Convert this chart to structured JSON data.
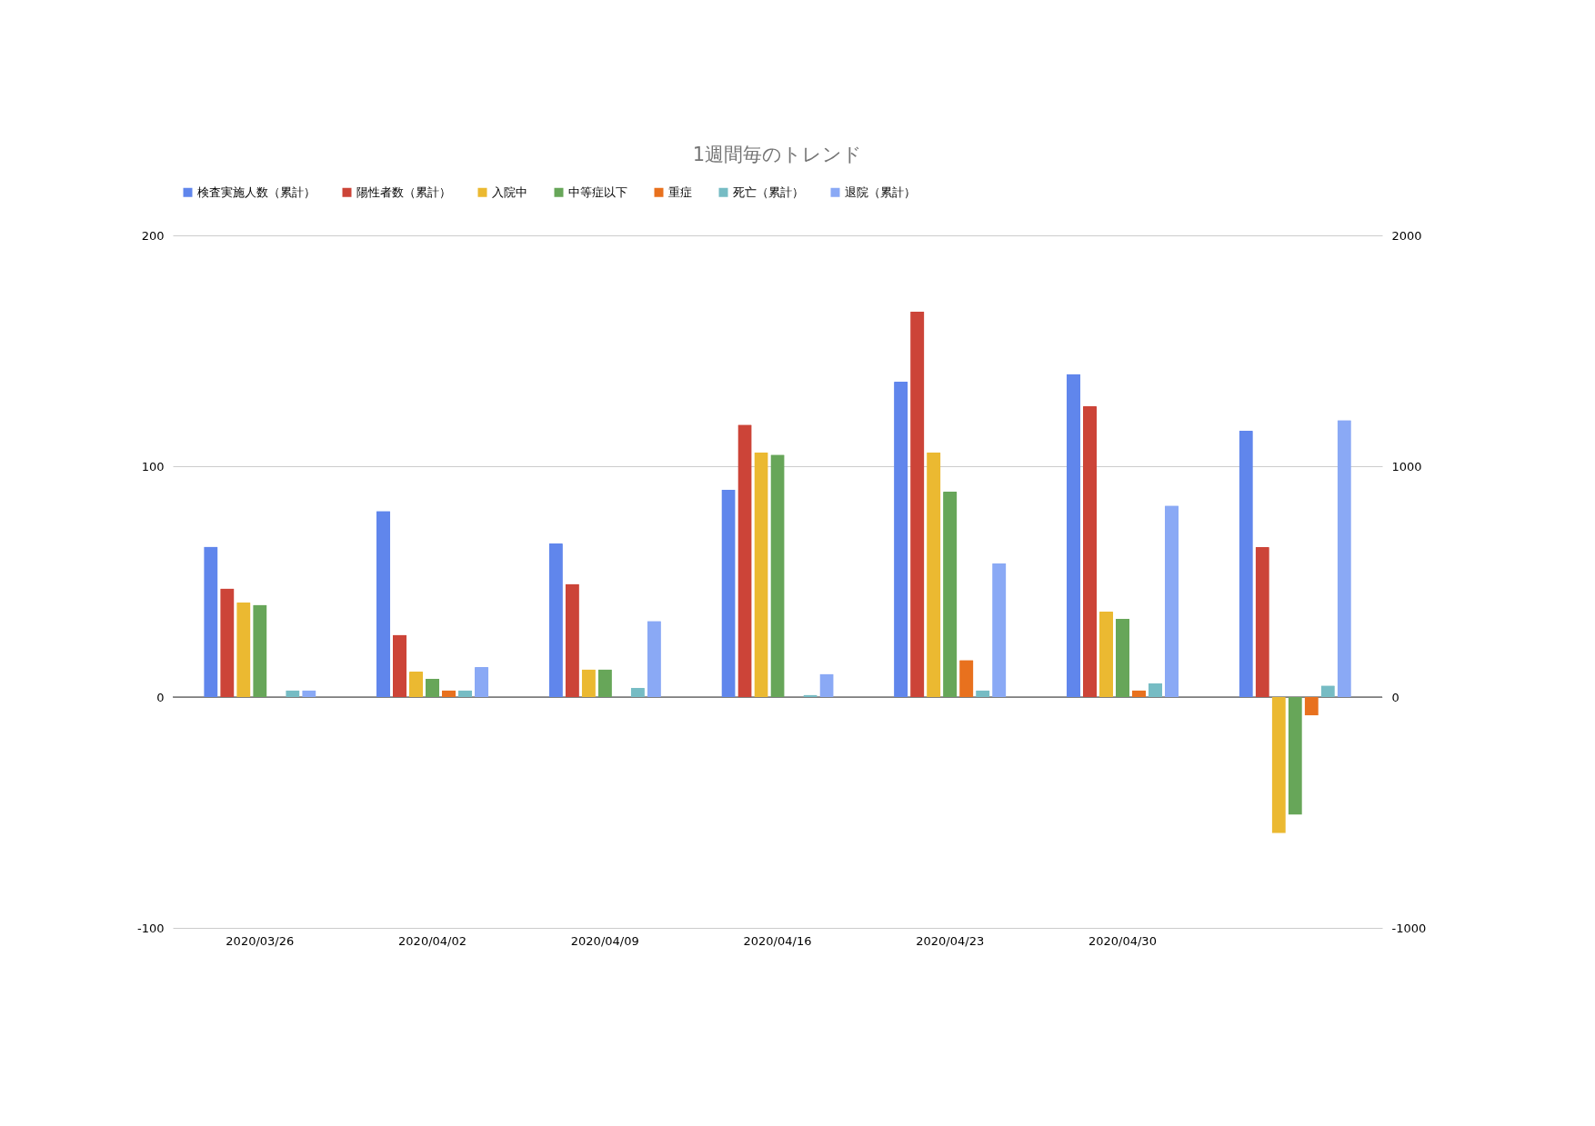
{
  "chart_data": {
    "type": "bar",
    "title": "1週間毎のトレンド",
    "categories": [
      "2020/03/26",
      "2020/04/02",
      "2020/04/09",
      "2020/04/16",
      "2020/04/23",
      "2020/04/30",
      null
    ],
    "series": [
      {
        "name": "検査実施人数（累計）",
        "color": "#6086ec",
        "axis": "y2",
        "values": [
          652,
          806,
          665,
          899,
          1366,
          1400,
          1154
        ]
      },
      {
        "name": "陽性者数（累計）",
        "color": "#cc4438",
        "values": [
          47,
          27,
          49,
          118,
          167,
          126,
          65
        ]
      },
      {
        "name": "入院中",
        "color": "#ebb931",
        "values": [
          41,
          11,
          12,
          106,
          106,
          37,
          -59
        ]
      },
      {
        "name": "中等症以下",
        "color": "#67a659",
        "values": [
          40,
          8,
          12,
          105,
          89,
          34,
          -51
        ]
      },
      {
        "name": "重症",
        "color": "#e8711e",
        "values": [
          0,
          3,
          0,
          0,
          16,
          3,
          -8
        ]
      },
      {
        "name": "死亡（累計）",
        "color": "#76bcc4",
        "values": [
          3,
          3,
          4,
          1,
          3,
          6,
          5
        ]
      },
      {
        "name": "退院（累計）",
        "color": "#8aa9f5",
        "values": [
          3,
          13,
          33,
          10,
          58,
          83,
          120
        ]
      }
    ],
    "ylim": [
      -100,
      200
    ],
    "yticks": [
      -100,
      0,
      100,
      200
    ],
    "y2lim": [
      -1000,
      2000
    ],
    "y2ticks": [
      -1000,
      0,
      1000,
      2000
    ],
    "grid": "y",
    "legend": "top"
  }
}
